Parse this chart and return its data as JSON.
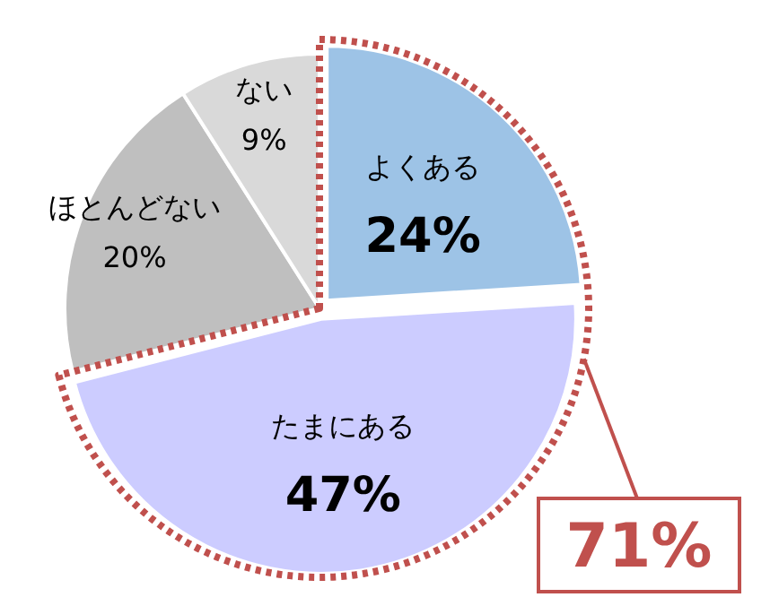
{
  "chart_data": {
    "type": "pie",
    "categories": [
      "よくある",
      "たまにある",
      "ほとんどない",
      "ない"
    ],
    "values": [
      24,
      47,
      20,
      9
    ],
    "value_labels": [
      "24%",
      "47%",
      "20%",
      "9%"
    ],
    "colors": [
      "#9dc3e6",
      "#ccccff",
      "#bfbfbf",
      "#d9d9d9"
    ],
    "annotations": [
      "71%"
    ]
  }
}
